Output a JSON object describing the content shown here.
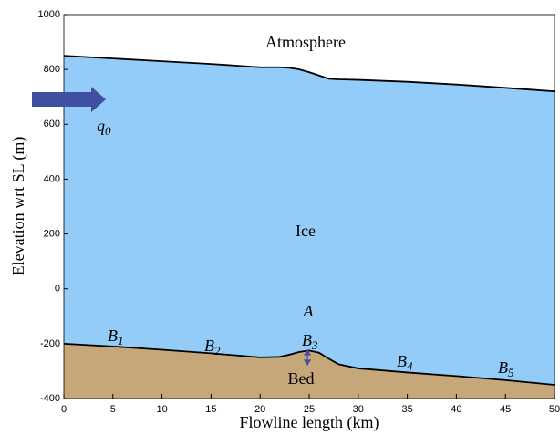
{
  "chart_data": {
    "type": "line",
    "xlabel": "Flowline length (km)",
    "ylabel": "Elevation wrt SL (m)",
    "x": [
      0,
      5,
      10,
      15,
      20,
      22,
      23,
      24,
      25,
      26,
      27,
      28,
      30,
      35,
      40,
      45,
      50
    ],
    "series": [
      {
        "color": "#000000",
        "values": [
          850,
          840,
          830,
          820,
          808,
          808,
          806,
          800,
          790,
          778,
          766,
          764,
          762,
          755,
          745,
          733,
          720
        ]
      },
      {
        "color": "#000000",
        "values": [
          -200,
          -210,
          -222,
          -235,
          -250,
          -248,
          -240,
          -230,
          -225,
          -233,
          -255,
          -275,
          -290,
          -305,
          -318,
          -333,
          -350
        ]
      }
    ],
    "fills": [
      "#ffffff",
      "#93cbf9",
      "#c6a77a"
    ],
    "xlim": [
      0,
      50
    ],
    "xticks": [
      0,
      5,
      10,
      15,
      20,
      25,
      30,
      35,
      40,
      45,
      50
    ],
    "ylim": [
      -400,
      1000
    ],
    "yticks": [
      -400,
      -200,
      0,
      200,
      400,
      600,
      800,
      1000
    ],
    "annotations": [
      {
        "text": "Atmosphere"
      },
      {
        "text": "Ice"
      },
      {
        "text": "Bed"
      },
      {
        "text": "A"
      },
      {
        "text": "q",
        "sub": "0"
      },
      {
        "text": "B",
        "sub": "1"
      },
      {
        "text": "B",
        "sub": "2"
      },
      {
        "text": "B",
        "sub": "3"
      },
      {
        "text": "B",
        "sub": "4"
      },
      {
        "text": "B",
        "sub": "5"
      }
    ]
  }
}
